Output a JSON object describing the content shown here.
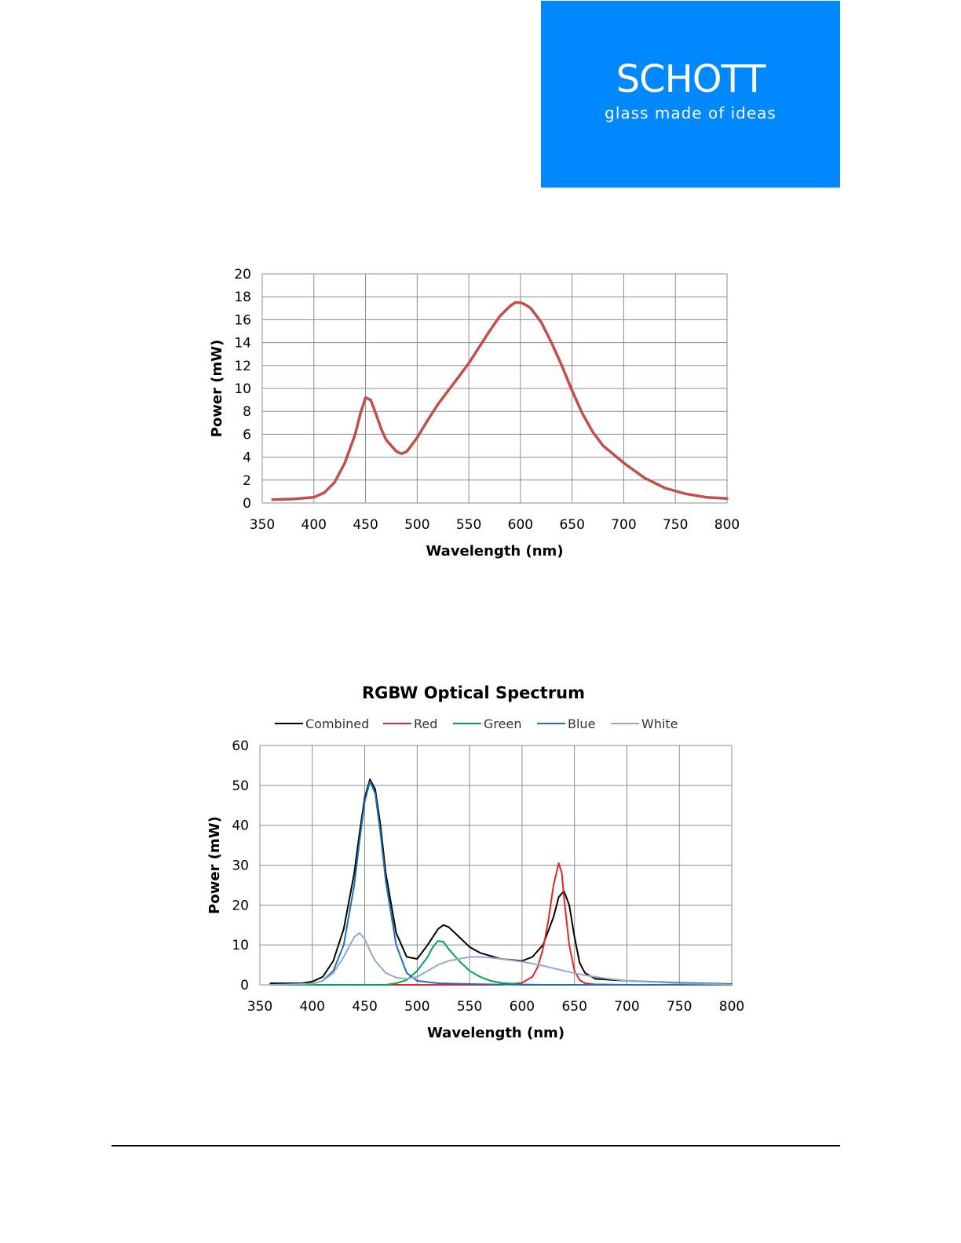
{
  "logo": {
    "name": "SCHOTT",
    "tagline": "glass made of ideas",
    "background": "#0088ff"
  },
  "chart_data": [
    {
      "type": "line",
      "title": "",
      "xlabel": "Wavelength (nm)",
      "ylabel": "Power (mW)",
      "xlim": [
        350,
        800
      ],
      "ylim": [
        0,
        20
      ],
      "xticks": [
        350,
        400,
        450,
        500,
        550,
        600,
        650,
        700,
        750,
        800
      ],
      "yticks": [
        0,
        2,
        4,
        6,
        8,
        10,
        12,
        14,
        16,
        18,
        20
      ],
      "grid": true,
      "legend": "none",
      "series": [
        {
          "color": "#c0504d",
          "x": [
            360,
            380,
            400,
            410,
            420,
            430,
            440,
            445,
            450,
            455,
            460,
            465,
            470,
            480,
            485,
            490,
            500,
            510,
            520,
            530,
            540,
            550,
            560,
            570,
            580,
            590,
            595,
            600,
            605,
            610,
            620,
            630,
            640,
            650,
            660,
            670,
            680,
            700,
            720,
            740,
            760,
            780,
            800
          ],
          "y": [
            0.3,
            0.35,
            0.5,
            0.9,
            1.8,
            3.5,
            6.0,
            7.8,
            9.2,
            9.0,
            7.8,
            6.5,
            5.5,
            4.5,
            4.3,
            4.5,
            5.7,
            7.2,
            8.6,
            9.8,
            11.0,
            12.2,
            13.6,
            15.0,
            16.3,
            17.2,
            17.5,
            17.5,
            17.3,
            17.0,
            15.8,
            14.0,
            12.0,
            9.8,
            7.8,
            6.2,
            5.0,
            3.5,
            2.2,
            1.3,
            0.8,
            0.5,
            0.4
          ]
        }
      ]
    },
    {
      "type": "line",
      "title": "RGBW Optical Spectrum",
      "xlabel": "Wavelength (nm)",
      "ylabel": "Power (mW)",
      "xlim": [
        350,
        800
      ],
      "ylim": [
        0,
        60
      ],
      "xticks": [
        350,
        400,
        450,
        500,
        550,
        600,
        650,
        700,
        750,
        800
      ],
      "yticks": [
        0,
        10,
        20,
        30,
        40,
        50,
        60
      ],
      "grid": true,
      "legend": "top",
      "series": [
        {
          "name": "Combined",
          "color": "#000000",
          "x": [
            360,
            390,
            400,
            410,
            420,
            430,
            440,
            445,
            450,
            455,
            460,
            465,
            470,
            480,
            490,
            500,
            510,
            520,
            525,
            530,
            540,
            550,
            560,
            580,
            600,
            610,
            620,
            630,
            635,
            640,
            645,
            650,
            655,
            660,
            670,
            700,
            750,
            800
          ],
          "y": [
            0.4,
            0.4,
            0.8,
            2.0,
            6.0,
            14.0,
            28.0,
            38.0,
            47.0,
            51.5,
            49.0,
            40.0,
            28.0,
            13.0,
            7.0,
            6.5,
            10.0,
            14.0,
            15.0,
            14.5,
            12.0,
            9.5,
            8.0,
            6.5,
            6.0,
            7.0,
            10.0,
            17.0,
            22.0,
            23.5,
            20.0,
            12.0,
            5.5,
            3.0,
            1.5,
            1.0,
            0.5,
            0.2
          ]
        },
        {
          "name": "Red",
          "color": "#e2252a",
          "x": [
            360,
            580,
            600,
            610,
            615,
            620,
            625,
            630,
            635,
            638,
            640,
            645,
            650,
            655,
            660,
            670,
            700,
            800
          ],
          "y": [
            0,
            0,
            0.5,
            2.0,
            4.5,
            9.0,
            16.0,
            25.0,
            30.5,
            28.0,
            22.0,
            10.0,
            3.5,
            1.2,
            0.4,
            0.1,
            0,
            0
          ]
        },
        {
          "name": "Green",
          "color": "#00a651",
          "x": [
            360,
            470,
            480,
            490,
            500,
            510,
            515,
            520,
            525,
            530,
            540,
            550,
            560,
            570,
            580,
            590,
            600,
            620,
            800
          ],
          "y": [
            0,
            0,
            0.4,
            1.2,
            3.5,
            7.0,
            9.5,
            11.0,
            10.8,
            9.0,
            6.0,
            3.5,
            2.0,
            1.0,
            0.5,
            0.3,
            0.1,
            0,
            0
          ]
        },
        {
          "name": "Blue",
          "color": "#1f6fb4",
          "x": [
            360,
            400,
            410,
            420,
            430,
            440,
            445,
            450,
            455,
            460,
            465,
            470,
            480,
            490,
            500,
            520,
            550,
            600,
            800
          ],
          "y": [
            0,
            0.3,
            1.0,
            3.5,
            10.0,
            25.0,
            36.0,
            46.0,
            51.0,
            48.0,
            38.0,
            26.0,
            10.0,
            3.0,
            1.0,
            0.4,
            0.2,
            0,
            0
          ]
        },
        {
          "name": "White",
          "color": "#93aac8",
          "x": [
            360,
            400,
            410,
            420,
            430,
            440,
            445,
            450,
            455,
            460,
            470,
            480,
            490,
            500,
            510,
            520,
            530,
            540,
            550,
            560,
            570,
            580,
            600,
            620,
            640,
            660,
            680,
            700,
            750,
            800
          ],
          "y": [
            0,
            0.3,
            1.0,
            3.0,
            7.0,
            12.0,
            13.0,
            11.5,
            8.5,
            6.0,
            3.0,
            1.8,
            1.5,
            2.0,
            3.5,
            5.0,
            6.0,
            6.5,
            7.0,
            7.0,
            6.8,
            6.5,
            5.8,
            4.8,
            3.5,
            2.4,
            1.6,
            1.0,
            0.4,
            0.1
          ]
        }
      ]
    }
  ]
}
